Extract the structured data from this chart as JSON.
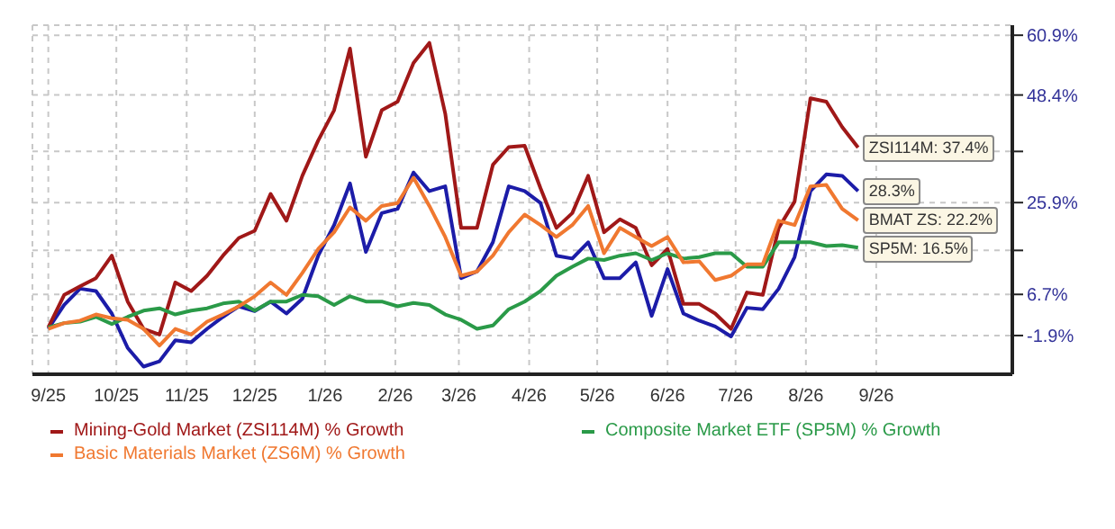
{
  "chart_data": {
    "type": "line",
    "x": [
      "2025-09-15",
      "2025-09-22",
      "2025-09-29",
      "2025-10-06",
      "2025-10-13",
      "2025-10-20",
      "2025-10-27",
      "2025-11-03",
      "2025-11-10",
      "2025-11-17",
      "2025-11-24",
      "2025-12-01",
      "2025-12-08",
      "2025-12-15",
      "2025-12-22",
      "2025-12-29",
      "2026-01-05",
      "2026-01-12",
      "2026-01-19",
      "2026-01-26",
      "2026-02-02",
      "2026-02-09",
      "2026-02-16",
      "2026-02-23",
      "2026-03-02",
      "2026-03-09",
      "2026-03-16",
      "2026-03-23",
      "2026-03-30",
      "2026-04-06",
      "2026-04-13",
      "2026-04-20",
      "2026-04-27",
      "2026-05-04",
      "2026-05-11",
      "2026-05-18",
      "2026-05-25",
      "2026-06-01",
      "2026-06-08",
      "2026-06-15",
      "2026-06-22",
      "2026-06-29",
      "2026-07-06",
      "2026-07-13",
      "2026-07-20",
      "2026-07-27",
      "2026-08-03",
      "2026-08-10",
      "2026-08-17",
      "2026-08-24",
      "2026-08-31",
      "2026-09-07"
    ],
    "series": [
      {
        "color": "#1c1ca8",
        "values": [
          -0.5,
          4.5,
          7.9,
          7.4,
          2.7,
          -4.5,
          -8.4,
          -7.3,
          -2.9,
          -3.3,
          -0.5,
          2.0,
          4.2,
          3.2,
          5.2,
          2.7,
          5.8,
          14.8,
          21.2,
          29.9,
          15.6,
          23.7,
          24.6,
          32.2,
          28.3,
          29.3,
          10.1,
          11.5,
          17.6,
          29.3,
          28.3,
          25.8,
          14.8,
          14.2,
          17.6,
          10.1,
          10.1,
          13.4,
          2.2,
          12.0,
          2.7,
          1.2,
          0,
          -2.1,
          3.9,
          3.6,
          7.9,
          14.5,
          28.3,
          31.8,
          31.5,
          28.3
        ]
      },
      {
        "name": "Mining-Gold Market (ZSI114M) % Growth",
        "color": "#a01818",
        "values": [
          -0.2,
          6.6,
          8.4,
          10.1,
          14.8,
          5.2,
          -0.5,
          -1.7,
          9.2,
          7.4,
          10.6,
          14.8,
          18.5,
          20.0,
          27.7,
          22.1,
          31.5,
          38.9,
          45.2,
          58.1,
          35.5,
          45.2,
          47.0,
          55.1,
          59.3,
          44.5,
          20.6,
          20.6,
          33.8,
          37.5,
          37.8,
          28.9,
          20.6,
          23.7,
          31.5,
          19.7,
          22.4,
          20.6,
          12.8,
          16.2,
          4.7,
          4.7,
          2.7,
          -0.5,
          7.1,
          6.6,
          20.6,
          26.1,
          47.7,
          47.0,
          41.7,
          37.4
        ]
      },
      {
        "name": "Composite Market ETF (SP5M) % Growth",
        "color": "#2a9a48",
        "values": [
          -0.2,
          0.7,
          1.0,
          2.0,
          0.5,
          2.0,
          3.3,
          3.8,
          2.5,
          3.3,
          3.8,
          4.8,
          5.2,
          3.3,
          5.2,
          5.2,
          6.6,
          6.3,
          4.5,
          6.3,
          5.2,
          5.2,
          4.2,
          4.9,
          4.5,
          2.5,
          1.4,
          -0.5,
          0.2,
          3.6,
          5.2,
          7.4,
          10.6,
          12.5,
          14.2,
          13.9,
          14.8,
          15.3,
          13.9,
          15.3,
          14.2,
          14.5,
          15.3,
          15.3,
          12.5,
          12.5,
          17.6,
          17.6,
          17.6,
          16.8,
          17.0,
          16.5
        ]
      },
      {
        "name": "Basic Materials Market (ZS6M) % Growth",
        "color": "#f07830",
        "values": [
          -0.5,
          0.7,
          1.2,
          2.5,
          1.7,
          1.4,
          -0.5,
          -4.0,
          -0.5,
          -1.7,
          1.0,
          2.5,
          4.2,
          6.3,
          9.2,
          6.6,
          11.2,
          16.2,
          19.7,
          24.9,
          22.1,
          25.2,
          25.8,
          31.1,
          25.2,
          18.7,
          10.6,
          11.5,
          14.8,
          19.7,
          23.4,
          21.2,
          18.7,
          21.2,
          25.2,
          15.3,
          20.6,
          18.7,
          16.8,
          18.7,
          13.4,
          13.6,
          9.7,
          10.6,
          13.0,
          13.0,
          22.1,
          21.2,
          29.3,
          29.6,
          24.6,
          22.2
        ]
      }
    ],
    "xlim": [
      "2025-09-08",
      "2026-11-14"
    ],
    "xticks": [
      {
        "value": "2025-09-15",
        "label": "9/25"
      },
      {
        "value": "2025-10-15",
        "label": "10/25"
      },
      {
        "value": "2025-11-15",
        "label": "11/25"
      },
      {
        "value": "2025-12-15",
        "label": "12/25"
      },
      {
        "value": "2026-01-15",
        "label": "1/26"
      },
      {
        "value": "2026-02-15",
        "label": "2/26"
      },
      {
        "value": "2026-03-15",
        "label": "3/26"
      },
      {
        "value": "2026-04-15",
        "label": "4/26"
      },
      {
        "value": "2026-05-15",
        "label": "5/26"
      },
      {
        "value": "2026-06-15",
        "label": "6/26"
      },
      {
        "value": "2026-07-15",
        "label": "7/26"
      },
      {
        "value": "2026-08-15",
        "label": "8/26"
      },
      {
        "value": "2026-09-15",
        "label": "9/26"
      }
    ],
    "ylim": [
      -10,
      63
    ],
    "yticks": [
      {
        "value": -1.9,
        "label": "-1.9%"
      },
      {
        "value": 6.7,
        "label": "6.7%"
      },
      {
        "value": 15.9,
        "label": null
      },
      {
        "value": 25.9,
        "label": "25.9%"
      },
      {
        "value": 36.6,
        "label": null
      },
      {
        "value": 48.4,
        "label": "48.4%"
      },
      {
        "value": 60.9,
        "label": "60.9%"
      }
    ],
    "grid": true,
    "legend": "bottom",
    "annotations": [
      {
        "text": "ZSI114M: 37.4%",
        "x": "2026-09-07",
        "y": 37.4
      },
      {
        "text": "28.3%",
        "x": "2026-09-07",
        "y": 28.3
      },
      {
        "text": "BMAT ZS: 22.2%",
        "x": "2026-09-07",
        "y": 22.2
      },
      {
        "text": "SP5M: 16.5%",
        "x": "2026-09-07",
        "y": 16.5
      }
    ]
  }
}
